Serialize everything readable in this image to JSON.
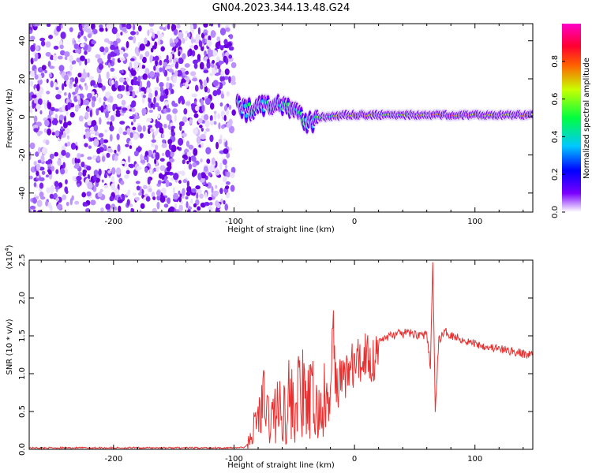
{
  "title": "GN04.2023.344.13.48.G24",
  "colors": {
    "snr_line": "#e83030",
    "background": "#ffffff",
    "axes": "#000000",
    "colormap": [
      "#ffffff",
      "#7a00ff",
      "#0000ff",
      "#00c8ff",
      "#00ff40",
      "#c8ff00",
      "#ff6000",
      "#ff0030",
      "#ff00c8"
    ]
  },
  "chart_data": [
    {
      "type": "heatmap",
      "name": "spectrogram",
      "xlabel": "Height of straight line (km)",
      "ylabel": "Frequency (Hz)",
      "xlim": [
        -270,
        148
      ],
      "ylim": [
        -50,
        49
      ],
      "xticks": [
        -200,
        -100,
        0,
        100
      ],
      "yticks": [
        40,
        20,
        0,
        -20,
        -40
      ],
      "xtick_labels": [
        "-200",
        "-100",
        "0",
        "100"
      ],
      "ytick_labels": [
        "40",
        "20",
        "0",
        "-20",
        "-40"
      ],
      "colorbar": {
        "label": "Normalized spectral amplitude",
        "range": [
          0,
          1
        ],
        "ticks": [
          0.0,
          0.2,
          0.4,
          0.6,
          0.8
        ],
        "tick_labels": [
          "0.0",
          "0.2",
          "0.4",
          "0.6",
          "0.8"
        ]
      },
      "description_points": {
        "noise_region_x": [
          -270,
          -100
        ],
        "signal_track": {
          "x": [
            -97,
            -90,
            -80,
            -70,
            -60,
            -52,
            -45,
            -40,
            -35,
            -30,
            -20,
            -10,
            0,
            20,
            40,
            60,
            80,
            100,
            120,
            148
          ],
          "y": [
            8,
            3,
            6,
            5,
            7,
            5,
            1,
            -2,
            -3,
            0,
            0,
            1,
            1,
            1,
            1,
            1,
            1,
            1,
            1,
            1
          ],
          "amplitude": [
            0.45,
            0.4,
            0.45,
            0.4,
            0.45,
            0.5,
            0.5,
            0.45,
            0.35,
            0.55,
            0.6,
            0.7,
            0.75,
            0.65,
            0.6,
            0.65,
            0.85,
            0.75,
            0.7,
            0.8
          ]
        }
      }
    },
    {
      "type": "line",
      "name": "snr",
      "xlabel": "Height of straight line (km)",
      "ylabel": "SNR (10 * v/v)",
      "scale_label": "(x10",
      "scale_exp": "4",
      "scale_close": ")",
      "xlim": [
        -270,
        148
      ],
      "ylim": [
        0,
        2.5
      ],
      "xticks": [
        -200,
        -100,
        0,
        100
      ],
      "yticks": [
        0.0,
        0.5,
        1.0,
        1.5,
        2.0,
        2.5
      ],
      "xtick_labels": [
        "-200",
        "-100",
        "0",
        "100"
      ],
      "ytick_labels": [
        "0.0",
        "0.5",
        "1.0",
        "1.5",
        "2.0",
        "2.5"
      ],
      "series": [
        {
          "x": [
            -270,
            -250,
            -230,
            -210,
            -190,
            -170,
            -150,
            -130,
            -110,
            -100,
            -90,
            -85,
            -80,
            -75,
            -70,
            -65,
            -60,
            -55,
            -50,
            -45,
            -40,
            -35,
            -30,
            -25,
            -20,
            -18,
            -15,
            -10,
            -5,
            0,
            5,
            10,
            15,
            20,
            25,
            30,
            35,
            40,
            45,
            50,
            55,
            60,
            63,
            65,
            67,
            70,
            75,
            80,
            85,
            90,
            95,
            100,
            105,
            110,
            115,
            120,
            125,
            130,
            135,
            140,
            148
          ],
          "y": [
            0.02,
            0.02,
            0.02,
            0.02,
            0.02,
            0.02,
            0.02,
            0.02,
            0.02,
            0.02,
            0.03,
            0.2,
            0.45,
            0.6,
            0.35,
            0.55,
            0.45,
            0.7,
            0.5,
            0.8,
            0.55,
            0.65,
            0.45,
            0.6,
            0.55,
            1.65,
            0.8,
            0.95,
            1.05,
            1.1,
            1.15,
            1.3,
            1.15,
            1.4,
            1.48,
            1.5,
            1.52,
            1.53,
            1.54,
            1.52,
            1.52,
            1.5,
            1.1,
            2.45,
            0.55,
            1.45,
            1.55,
            1.52,
            1.48,
            1.45,
            1.42,
            1.4,
            1.38,
            1.36,
            1.34,
            1.32,
            1.31,
            1.3,
            1.28,
            1.26,
            1.25
          ]
        }
      ]
    }
  ]
}
